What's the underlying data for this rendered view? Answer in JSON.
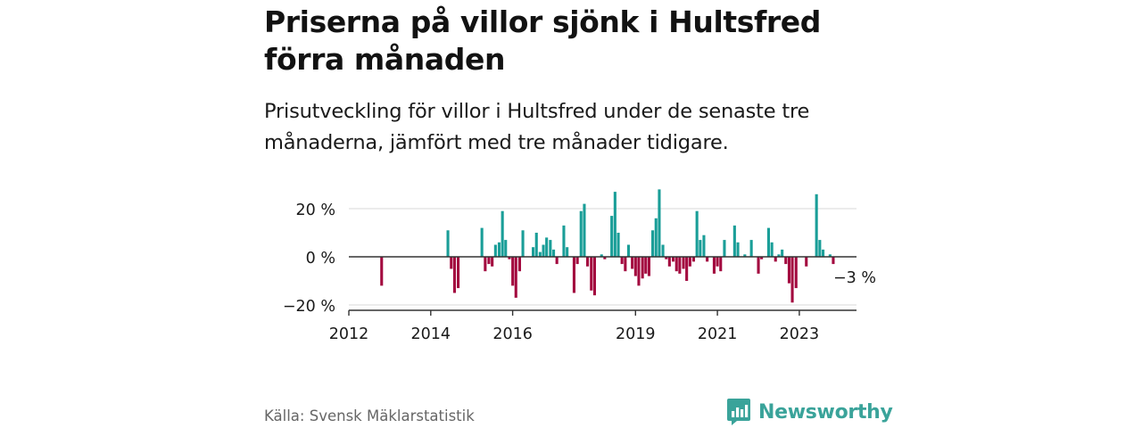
{
  "title": "Priserna på villor sjönk i Hultsfred förra månaden",
  "subtitle": "Prisutveckling för villor i Hultsfred under de senaste tre månaderna, jämfört med tre månader tidigare.",
  "source": "Källa: Svensk Mäklarstatistik",
  "brand": {
    "name": "Newsworthy",
    "icon": "newsworthy-logo-icon"
  },
  "colors": {
    "positive": "#1a9e98",
    "negative": "#a3093f",
    "grid": "#d9d9d9",
    "axis": "#333333",
    "brand": "#3aa39a"
  },
  "chart_data": {
    "type": "bar",
    "title": "Priserna på villor sjönk i Hultsfred förra månaden",
    "xlabel": "",
    "ylabel": "",
    "ylim": [
      -22,
      28
    ],
    "y_ticks": [
      20,
      0,
      -20
    ],
    "y_tick_labels": [
      "20 %",
      "0 %",
      "−20 %"
    ],
    "x_tick_years": [
      2012,
      2014,
      2016,
      2019,
      2021,
      2023
    ],
    "x_tick_labels": [
      "2012",
      "2014",
      "2016",
      "2019",
      "2021",
      "2023"
    ],
    "x_start": 2012.0,
    "x_end": 2024.5,
    "end_label": "−3 %",
    "grid": true,
    "series": [
      {
        "name": "Prisutveckling",
        "points": [
          {
            "t": 2012.8,
            "v": -12
          },
          {
            "t": 2014.42,
            "v": 11
          },
          {
            "t": 2014.5,
            "v": -5
          },
          {
            "t": 2014.58,
            "v": -15
          },
          {
            "t": 2014.67,
            "v": -13
          },
          {
            "t": 2015.25,
            "v": 12
          },
          {
            "t": 2015.33,
            "v": -6
          },
          {
            "t": 2015.42,
            "v": -3
          },
          {
            "t": 2015.5,
            "v": -4
          },
          {
            "t": 2015.58,
            "v": 5
          },
          {
            "t": 2015.67,
            "v": 6
          },
          {
            "t": 2015.75,
            "v": 19
          },
          {
            "t": 2015.83,
            "v": 7
          },
          {
            "t": 2015.92,
            "v": -1
          },
          {
            "t": 2016.0,
            "v": -12
          },
          {
            "t": 2016.08,
            "v": -17
          },
          {
            "t": 2016.17,
            "v": -6
          },
          {
            "t": 2016.25,
            "v": 11
          },
          {
            "t": 2016.5,
            "v": 4
          },
          {
            "t": 2016.58,
            "v": 10
          },
          {
            "t": 2016.67,
            "v": 2
          },
          {
            "t": 2016.75,
            "v": 5
          },
          {
            "t": 2016.83,
            "v": 8
          },
          {
            "t": 2016.92,
            "v": 7
          },
          {
            "t": 2017.0,
            "v": 3
          },
          {
            "t": 2017.08,
            "v": -3
          },
          {
            "t": 2017.25,
            "v": 13
          },
          {
            "t": 2017.33,
            "v": 4
          },
          {
            "t": 2017.5,
            "v": -15
          },
          {
            "t": 2017.58,
            "v": -3
          },
          {
            "t": 2017.67,
            "v": 19
          },
          {
            "t": 2017.75,
            "v": 22
          },
          {
            "t": 2017.83,
            "v": -4
          },
          {
            "t": 2017.92,
            "v": -14
          },
          {
            "t": 2018.0,
            "v": -16
          },
          {
            "t": 2018.17,
            "v": 1
          },
          {
            "t": 2018.25,
            "v": -1
          },
          {
            "t": 2018.42,
            "v": 17
          },
          {
            "t": 2018.5,
            "v": 27
          },
          {
            "t": 2018.58,
            "v": 10
          },
          {
            "t": 2018.67,
            "v": -3
          },
          {
            "t": 2018.75,
            "v": -6
          },
          {
            "t": 2018.83,
            "v": 5
          },
          {
            "t": 2018.92,
            "v": -5
          },
          {
            "t": 2019.0,
            "v": -8
          },
          {
            "t": 2019.08,
            "v": -12
          },
          {
            "t": 2019.17,
            "v": -9
          },
          {
            "t": 2019.25,
            "v": -7
          },
          {
            "t": 2019.33,
            "v": -8
          },
          {
            "t": 2019.42,
            "v": 11
          },
          {
            "t": 2019.5,
            "v": 16
          },
          {
            "t": 2019.58,
            "v": 28
          },
          {
            "t": 2019.67,
            "v": 5
          },
          {
            "t": 2019.75,
            "v": -1
          },
          {
            "t": 2019.83,
            "v": -4
          },
          {
            "t": 2019.92,
            "v": -2
          },
          {
            "t": 2020.0,
            "v": -6
          },
          {
            "t": 2020.08,
            "v": -7
          },
          {
            "t": 2020.17,
            "v": -5
          },
          {
            "t": 2020.25,
            "v": -10
          },
          {
            "t": 2020.33,
            "v": -4
          },
          {
            "t": 2020.42,
            "v": -2
          },
          {
            "t": 2020.5,
            "v": 19
          },
          {
            "t": 2020.58,
            "v": 7
          },
          {
            "t": 2020.67,
            "v": 9
          },
          {
            "t": 2020.75,
            "v": -2
          },
          {
            "t": 2020.92,
            "v": -7
          },
          {
            "t": 2021.0,
            "v": -4
          },
          {
            "t": 2021.08,
            "v": -6
          },
          {
            "t": 2021.17,
            "v": 7
          },
          {
            "t": 2021.42,
            "v": 13
          },
          {
            "t": 2021.5,
            "v": 6
          },
          {
            "t": 2021.67,
            "v": 1
          },
          {
            "t": 2021.83,
            "v": 7
          },
          {
            "t": 2022.0,
            "v": -7
          },
          {
            "t": 2022.08,
            "v": -1
          },
          {
            "t": 2022.25,
            "v": 12
          },
          {
            "t": 2022.33,
            "v": 6
          },
          {
            "t": 2022.42,
            "v": -2
          },
          {
            "t": 2022.5,
            "v": 1
          },
          {
            "t": 2022.58,
            "v": 3
          },
          {
            "t": 2022.67,
            "v": -3
          },
          {
            "t": 2022.75,
            "v": -11
          },
          {
            "t": 2022.83,
            "v": -19
          },
          {
            "t": 2022.92,
            "v": -13
          },
          {
            "t": 2023.17,
            "v": -4
          },
          {
            "t": 2023.42,
            "v": 26
          },
          {
            "t": 2023.5,
            "v": 7
          },
          {
            "t": 2023.58,
            "v": 3
          },
          {
            "t": 2023.75,
            "v": 1
          },
          {
            "t": 2023.83,
            "v": -3
          }
        ]
      }
    ]
  }
}
